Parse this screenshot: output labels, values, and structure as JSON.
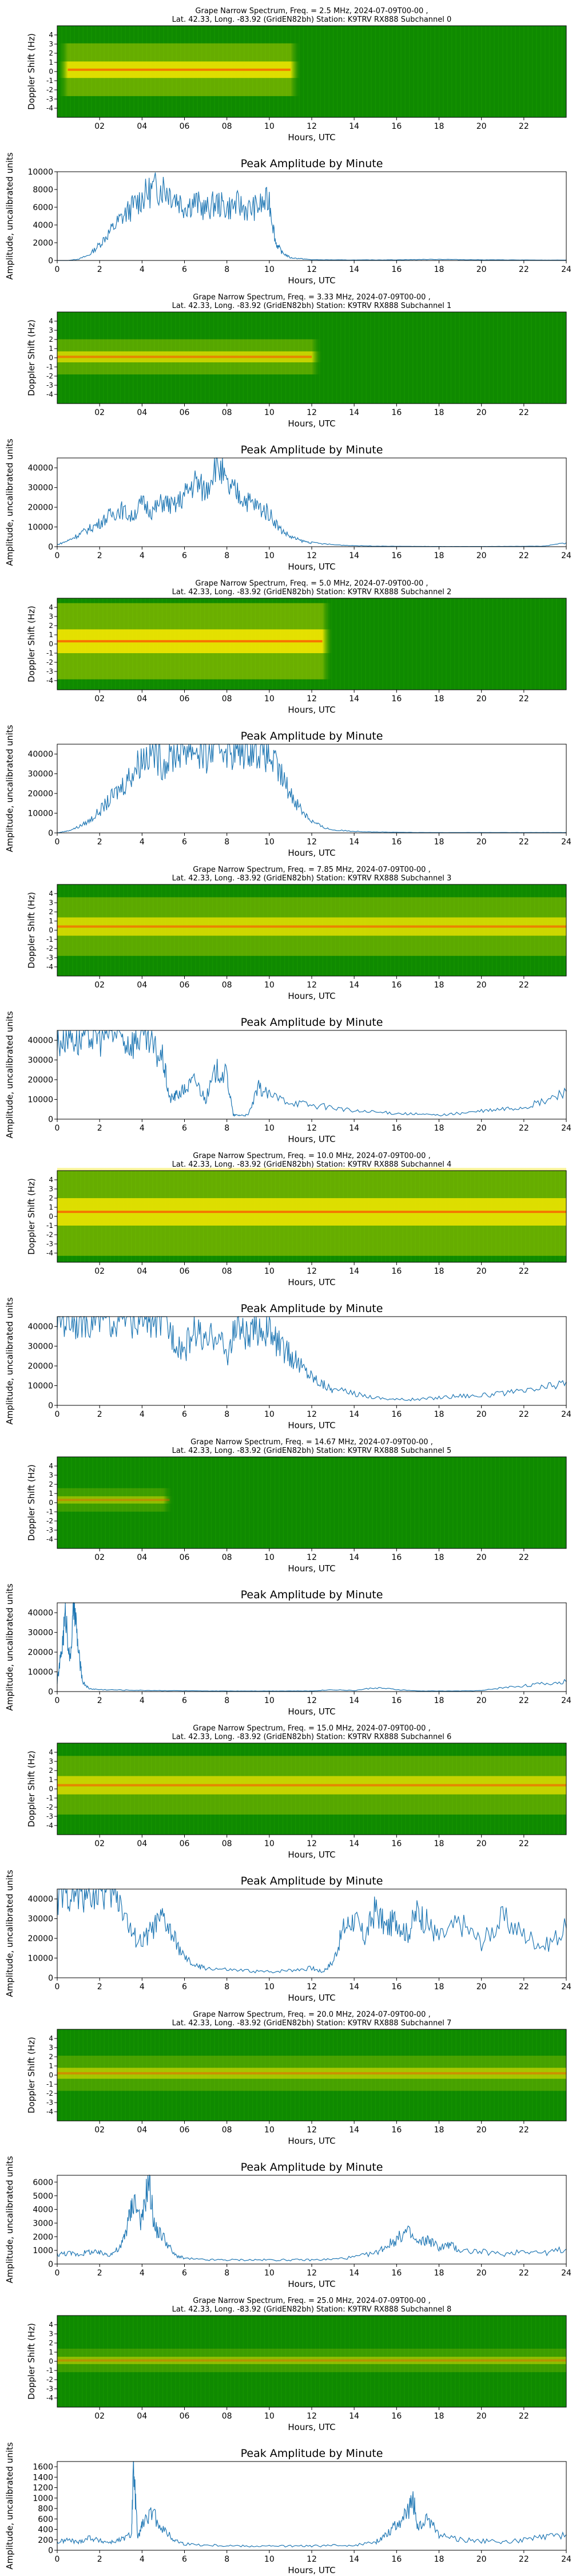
{
  "common": {
    "x_label": "Hours, UTC",
    "spec_y_label": "Doppler Shift (Hz)",
    "amp_title": "Peak Amplitude by Minute",
    "amp_y_label": "Amplitude, uncalibrated units",
    "location": "Lat.  42.33, Long. -83.92 (GridEN82bh) Station: K9TRV RX888",
    "spec_x_ticks": [
      "02",
      "04",
      "06",
      "08",
      "10",
      "12",
      "14",
      "16",
      "18",
      "20",
      "22"
    ],
    "amp_x_ticks": [
      "0",
      "2",
      "4",
      "6",
      "8",
      "10",
      "12",
      "14",
      "16",
      "18",
      "20",
      "22",
      "24"
    ],
    "spec_y_ticks": [
      "-4",
      "-3",
      "-2",
      "-1",
      "0",
      "1",
      "2",
      "3",
      "4"
    ],
    "colors": {
      "spectrogram_bg": "#0f8a00",
      "spectrogram_band": "#f2e600",
      "spectrogram_peak": "#ff4a00",
      "line": "#1f77b4"
    }
  },
  "chart_data": [
    {
      "type": "heatmap",
      "title": "Grape Narrow Spectrum, Freq. = 2.5 MHz, 2024-07-09T00-00 ,",
      "subtitle": "Lat.  42.33, Long. -83.92 (GridEN82bh) Station: K9TRV RX888 Subchannel 0",
      "xlabel": "Hours, UTC",
      "ylabel": "Doppler Shift (Hz)",
      "xlim": [
        0,
        24
      ],
      "ylim": [
        -5,
        5
      ],
      "signal": {
        "active_hours": [
          0.5,
          11.0
        ],
        "intensity": 0.85,
        "spread_hz": 0.9,
        "offset_hz": 0.2
      }
    },
    {
      "type": "line",
      "title": "Peak Amplitude by Minute",
      "xlabel": "Hours, UTC",
      "ylabel": "Amplitude, uncalibrated units",
      "xlim": [
        0,
        24
      ],
      "ylim": [
        0,
        10000
      ],
      "yticks": [
        0,
        2000,
        4000,
        6000,
        8000,
        10000
      ],
      "x": [
        0,
        0.5,
        1,
        1.5,
        2,
        2.5,
        3,
        3.5,
        4,
        4.5,
        5,
        5.5,
        6,
        6.5,
        7,
        7.5,
        8,
        8.5,
        9,
        9.5,
        10,
        10.3,
        10.6,
        11,
        11.5,
        12,
        13,
        14,
        15,
        16,
        17,
        18,
        19,
        20,
        21,
        22,
        23,
        24
      ],
      "values": [
        0,
        0,
        150,
        600,
        1800,
        3300,
        4700,
        5900,
        7100,
        8000,
        8300,
        7300,
        6100,
        6600,
        5700,
        6500,
        5900,
        6300,
        5700,
        6100,
        6800,
        2000,
        900,
        300,
        200,
        80,
        60,
        50,
        60,
        70,
        100,
        130,
        90,
        70,
        60,
        50,
        40,
        40
      ]
    },
    {
      "type": "heatmap",
      "title": "Grape Narrow Spectrum, Freq. = 3.33 MHz, 2024-07-09T00-00 ,",
      "subtitle": "Lat.  42.33, Long. -83.92 (GridEN82bh) Station: K9TRV RX888 Subchannel 1",
      "xlabel": "Hours, UTC",
      "ylabel": "Doppler Shift (Hz)",
      "xlim": [
        0,
        24
      ],
      "ylim": [
        -5,
        5
      ],
      "signal": {
        "active_hours": [
          0.0,
          12.0
        ],
        "intensity": 0.7,
        "spread_hz": 0.6,
        "offset_hz": 0.1
      }
    },
    {
      "type": "line",
      "title": "Peak Amplitude by Minute",
      "xlabel": "Hours, UTC",
      "ylabel": "Amplitude, uncalibrated units",
      "xlim": [
        0,
        24
      ],
      "ylim": [
        0,
        45000
      ],
      "yticks": [
        0,
        10000,
        20000,
        30000,
        40000
      ],
      "x": [
        0,
        0.5,
        1,
        1.5,
        2,
        2.5,
        3,
        3.5,
        4,
        4.5,
        5,
        5.5,
        6,
        6.5,
        7,
        7.5,
        8,
        8.5,
        9,
        9.5,
        10,
        10.5,
        11,
        11.5,
        12,
        13,
        14,
        15,
        16,
        17,
        18,
        19,
        20,
        21,
        22,
        23,
        24
      ],
      "values": [
        1000,
        3000,
        6000,
        9000,
        12000,
        16000,
        19000,
        15000,
        22000,
        18000,
        23000,
        20000,
        26000,
        33000,
        28000,
        45000,
        30000,
        27000,
        23000,
        20000,
        17000,
        9000,
        5000,
        3000,
        2000,
        1000,
        500,
        300,
        200,
        150,
        100,
        100,
        100,
        150,
        200,
        300,
        2000
      ]
    },
    {
      "type": "heatmap",
      "title": "Grape Narrow Spectrum, Freq. = 5.0 MHz, 2024-07-09T00-00 ,",
      "subtitle": "Lat.  42.33, Long. -83.92 (GridEN82bh) Station: K9TRV RX888 Subchannel 2",
      "xlabel": "Hours, UTC",
      "ylabel": "Doppler Shift (Hz)",
      "xlim": [
        0,
        24
      ],
      "ylim": [
        -5,
        5
      ],
      "signal": {
        "active_hours": [
          0.0,
          12.5
        ],
        "intensity": 0.9,
        "spread_hz": 1.3,
        "offset_hz": 0.3
      }
    },
    {
      "type": "line",
      "title": "Peak Amplitude by Minute",
      "xlabel": "Hours, UTC",
      "ylabel": "Amplitude, uncalibrated units",
      "xlim": [
        0,
        24
      ],
      "ylim": [
        0,
        45000
      ],
      "yticks": [
        0,
        10000,
        20000,
        30000,
        40000
      ],
      "x": [
        0,
        0.5,
        1,
        1.5,
        2,
        2.5,
        3,
        3.5,
        4,
        4.5,
        5,
        5.5,
        6,
        6.5,
        7,
        7.5,
        8,
        8.5,
        9,
        9.5,
        10,
        10.5,
        11,
        11.5,
        12,
        12.5,
        13,
        14,
        15,
        16,
        17,
        18,
        19,
        20,
        21,
        22,
        23,
        24
      ],
      "values": [
        0,
        1000,
        3000,
        6000,
        11000,
        17000,
        23000,
        30000,
        38000,
        42000,
        35000,
        40000,
        44000,
        43000,
        38000,
        45000,
        44000,
        40000,
        45000,
        43000,
        39000,
        30000,
        20000,
        12000,
        6000,
        3000,
        1500,
        800,
        500,
        300,
        200,
        200,
        200,
        200,
        200,
        200,
        200,
        200
      ]
    },
    {
      "type": "heatmap",
      "title": "Grape Narrow Spectrum, Freq. = 7.85 MHz, 2024-07-09T00-00 ,",
      "subtitle": "Lat.  42.33, Long. -83.92 (GridEN82bh) Station: K9TRV RX888 Subchannel 3",
      "xlabel": "Hours, UTC",
      "ylabel": "Doppler Shift (Hz)",
      "xlim": [
        0,
        24
      ],
      "ylim": [
        -5,
        5
      ],
      "signal": {
        "active_hours": [
          0.0,
          24.0
        ],
        "intensity": 0.75,
        "spread_hz": 1.0,
        "offset_hz": 0.4
      }
    },
    {
      "type": "line",
      "title": "Peak Amplitude by Minute",
      "xlabel": "Hours, UTC",
      "ylabel": "Amplitude, uncalibrated units",
      "xlim": [
        0,
        24
      ],
      "ylim": [
        0,
        45000
      ],
      "yticks": [
        0,
        10000,
        20000,
        30000,
        40000
      ],
      "x": [
        0,
        0.5,
        1,
        1.5,
        2,
        2.5,
        3,
        3.5,
        4,
        4.5,
        5,
        5.3,
        5.6,
        6,
        6.5,
        7,
        7.5,
        8,
        8.3,
        8.6,
        9,
        9.5,
        10,
        11,
        12,
        13,
        14,
        15,
        16,
        17,
        18,
        19,
        20,
        21,
        22,
        23,
        24
      ],
      "values": [
        38000,
        45000,
        40000,
        44000,
        42000,
        45000,
        41000,
        39000,
        43000,
        36000,
        30000,
        10000,
        12000,
        15000,
        20000,
        10000,
        25000,
        22000,
        2000,
        2000,
        2000,
        16000,
        12000,
        9000,
        7000,
        6000,
        4000,
        3500,
        3000,
        2500,
        2000,
        3000,
        4000,
        5000,
        6000,
        9000,
        14000
      ]
    },
    {
      "type": "heatmap",
      "title": "Grape Narrow Spectrum, Freq. = 10.0 MHz, 2024-07-09T00-00 ,",
      "subtitle": "Lat.  42.33, Long. -83.92 (GridEN82bh) Station: K9TRV RX888 Subchannel 4",
      "xlabel": "Hours, UTC",
      "ylabel": "Doppler Shift (Hz)",
      "xlim": [
        0,
        24
      ],
      "ylim": [
        -5,
        5
      ],
      "signal": {
        "active_hours": [
          0.0,
          24.0
        ],
        "intensity": 0.85,
        "spread_hz": 1.5,
        "offset_hz": 0.5
      }
    },
    {
      "type": "line",
      "title": "Peak Amplitude by Minute",
      "xlabel": "Hours, UTC",
      "ylabel": "Amplitude, uncalibrated units",
      "xlim": [
        0,
        24
      ],
      "ylim": [
        0,
        45000
      ],
      "yticks": [
        0,
        10000,
        20000,
        30000,
        40000
      ],
      "x": [
        0,
        0.5,
        1,
        1.5,
        2,
        2.5,
        3,
        3.5,
        4,
        4.5,
        5,
        5.5,
        6,
        6.5,
        7,
        7.5,
        8,
        8.5,
        9,
        9.5,
        10,
        10.5,
        11,
        11.5,
        12,
        12.5,
        13,
        14,
        15,
        16,
        17,
        18,
        19,
        20,
        21,
        22,
        23,
        24
      ],
      "values": [
        45000,
        44000,
        45000,
        45000,
        45000,
        45000,
        45000,
        45000,
        45000,
        45000,
        43000,
        35000,
        28000,
        40000,
        30000,
        38000,
        25000,
        42000,
        33000,
        40000,
        37000,
        30000,
        25000,
        20000,
        15000,
        11000,
        8000,
        6000,
        4000,
        3000,
        3000,
        4000,
        5000,
        5000,
        6000,
        7000,
        9000,
        12000
      ]
    },
    {
      "type": "heatmap",
      "title": "Grape Narrow Spectrum, Freq. = 14.67 MHz, 2024-07-09T00-00 ,",
      "subtitle": "Lat.  42.33, Long. -83.92 (GridEN82bh) Station: K9TRV RX888 Subchannel 5",
      "xlabel": "Hours, UTC",
      "ylabel": "Doppler Shift (Hz)",
      "xlim": [
        0,
        24
      ],
      "ylim": [
        -5,
        5
      ],
      "signal": {
        "active_hours": [
          0.0,
          5.3
        ],
        "intensity": 0.45,
        "spread_hz": 0.4,
        "offset_hz": 0.3
      }
    },
    {
      "type": "line",
      "title": "Peak Amplitude by Minute",
      "xlabel": "Hours, UTC",
      "ylabel": "Amplitude, uncalibrated units",
      "xlim": [
        0,
        24
      ],
      "ylim": [
        0,
        45000
      ],
      "yticks": [
        0,
        10000,
        20000,
        30000,
        40000
      ],
      "x": [
        0,
        0.2,
        0.4,
        0.6,
        0.8,
        1,
        1.2,
        1.5,
        2,
        3,
        4,
        5,
        6,
        7,
        8,
        9,
        10,
        11,
        12,
        13,
        14,
        15,
        16,
        17,
        18,
        19,
        20,
        21,
        22,
        23,
        24
      ],
      "values": [
        5000,
        20000,
        40000,
        15000,
        45000,
        20000,
        5000,
        1500,
        1000,
        800,
        600,
        500,
        400,
        300,
        300,
        300,
        300,
        300,
        300,
        1000,
        500,
        2000,
        1000,
        300,
        300,
        300,
        500,
        2000,
        3000,
        4000,
        5000
      ]
    },
    {
      "type": "heatmap",
      "title": "Grape Narrow Spectrum, Freq. = 15.0 MHz, 2024-07-09T00-00 ,",
      "subtitle": "Lat.  42.33, Long. -83.92 (GridEN82bh) Station: K9TRV RX888 Subchannel 6",
      "xlabel": "Hours, UTC",
      "ylabel": "Doppler Shift (Hz)",
      "xlim": [
        0,
        24
      ],
      "ylim": [
        -5,
        5
      ],
      "signal": {
        "active_hours": [
          0.0,
          24.0
        ],
        "intensity": 0.7,
        "spread_hz": 1.0,
        "offset_hz": 0.4
      }
    },
    {
      "type": "line",
      "title": "Peak Amplitude by Minute",
      "xlabel": "Hours, UTC",
      "ylabel": "Amplitude, uncalibrated units",
      "xlim": [
        0,
        24
      ],
      "ylim": [
        0,
        45000
      ],
      "yticks": [
        0,
        10000,
        20000,
        30000,
        40000
      ],
      "x": [
        0,
        0.5,
        1,
        1.5,
        2,
        2.5,
        3,
        3.5,
        4,
        4.5,
        5,
        5.5,
        6,
        6.5,
        7,
        8,
        9,
        10,
        11,
        12,
        12.5,
        13,
        13.5,
        14,
        14.5,
        15,
        15.5,
        16,
        16.5,
        17,
        17.5,
        18,
        19,
        20,
        21,
        22,
        23,
        24
      ],
      "values": [
        40000,
        45000,
        42000,
        45000,
        44000,
        45000,
        40000,
        22000,
        18000,
        25000,
        30000,
        20000,
        10000,
        6000,
        5000,
        4000,
        3500,
        3000,
        4000,
        5000,
        3000,
        8000,
        25000,
        30000,
        20000,
        35000,
        25000,
        30000,
        22000,
        34000,
        27000,
        20000,
        28000,
        18000,
        30000,
        22000,
        16000,
        25000
      ]
    },
    {
      "type": "heatmap",
      "title": "Grape Narrow Spectrum, Freq. = 20.0 MHz, 2024-07-09T00-00 ,",
      "subtitle": "Lat.  42.33, Long. -83.92 (GridEN82bh) Station: K9TRV RX888 Subchannel 7",
      "xlabel": "Hours, UTC",
      "ylabel": "Doppler Shift (Hz)",
      "xlim": [
        0,
        24
      ],
      "ylim": [
        -5,
        5
      ],
      "signal": {
        "active_hours": [
          0.0,
          24.0
        ],
        "intensity": 0.55,
        "spread_hz": 0.6,
        "offset_hz": 0.2
      }
    },
    {
      "type": "line",
      "title": "Peak Amplitude by Minute",
      "xlabel": "Hours, UTC",
      "ylabel": "Amplitude, uncalibrated units",
      "xlim": [
        0,
        24
      ],
      "ylim": [
        0,
        6500
      ],
      "yticks": [
        0,
        1000,
        2000,
        3000,
        4000,
        5000,
        6000
      ],
      "x": [
        0,
        0.5,
        1,
        1.5,
        2,
        2.5,
        3,
        3.3,
        3.6,
        4,
        4.3,
        4.6,
        5,
        5.5,
        6,
        7,
        8,
        9,
        10,
        11,
        12,
        13,
        14,
        15,
        15.5,
        16,
        16.5,
        17,
        17.5,
        18,
        18.5,
        19,
        20,
        21,
        22,
        23,
        24
      ],
      "values": [
        700,
        800,
        700,
        900,
        800,
        700,
        1200,
        2800,
        4800,
        3000,
        6300,
        2600,
        2000,
        700,
        400,
        300,
        300,
        300,
        300,
        300,
        300,
        350,
        500,
        800,
        1300,
        1800,
        2400,
        1500,
        1800,
        1200,
        1400,
        1000,
        900,
        700,
        1000,
        800,
        1100
      ]
    },
    {
      "type": "heatmap",
      "title": "Grape Narrow Spectrum, Freq. = 25.0 MHz, 2024-07-09T00-00 ,",
      "subtitle": "Lat.  42.33, Long. -83.92 (GridEN82bh) Station: K9TRV RX888 Subchannel 8",
      "xlabel": "Hours, UTC",
      "ylabel": "Doppler Shift (Hz)",
      "xlim": [
        0,
        24
      ],
      "ylim": [
        -5,
        5
      ],
      "signal": {
        "active_hours": [
          0.0,
          24.0
        ],
        "intensity": 0.45,
        "spread_hz": 0.4,
        "offset_hz": 0.1
      }
    },
    {
      "type": "line",
      "title": "Peak Amplitude by Minute",
      "xlabel": "Hours, UTC",
      "ylabel": "Amplitude, uncalibrated units",
      "xlim": [
        0,
        24
      ],
      "ylim": [
        0,
        1700
      ],
      "yticks": [
        0,
        200,
        400,
        600,
        800,
        1000,
        1200,
        1400,
        1600
      ],
      "x": [
        0,
        0.5,
        1,
        1.5,
        2,
        2.5,
        3,
        3.5,
        3.6,
        3.8,
        4,
        4.5,
        5,
        5.5,
        6,
        7,
        8,
        9,
        10,
        11,
        12,
        13,
        14,
        15,
        15.5,
        16,
        16.5,
        16.8,
        17,
        17.5,
        18,
        19,
        20,
        21,
        22,
        23,
        24
      ],
      "values": [
        150,
        200,
        150,
        250,
        180,
        150,
        200,
        300,
        1600,
        200,
        500,
        700,
        400,
        200,
        120,
        100,
        90,
        80,
        80,
        80,
        80,
        90,
        100,
        150,
        300,
        500,
        700,
        950,
        400,
        600,
        300,
        200,
        180,
        150,
        200,
        250,
        300
      ]
    }
  ]
}
